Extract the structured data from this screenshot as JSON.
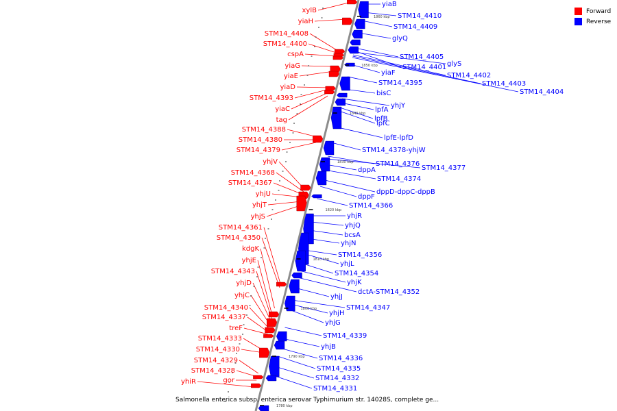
{
  "legend": [
    {
      "label": "Forward",
      "color": "#ff0000"
    },
    {
      "label": "Reverse",
      "color": "#0000ff"
    }
  ],
  "caption": "Salmonella enterica subsp. enterica serovar Typhimurium str. 14028S, complete ge...",
  "backbone_color": "#8c8c8c",
  "forward_genes": [
    "xylB",
    "yiaH",
    "STM14_4408",
    "STM14_4400",
    "cspA",
    "yiaG",
    "yiaE",
    "yiaD",
    "STM14_4393",
    "yiaC",
    "tag",
    "STM14_4388",
    "STM14_4380",
    "STM14_4379",
    "yhjV",
    "STM14_4368",
    "STM14_4367",
    "yhjU",
    "yhjT",
    "yhjS",
    "STM14_4361",
    "STM14_4350",
    "kdgK",
    "yhjE",
    "STM14_4343",
    "yhjD",
    "yhjC",
    "STM14_4340",
    "STM14_4337",
    "treF",
    "STM14_4333",
    "STM14_4330",
    "STM14_4329",
    "STM14_4328",
    "gor",
    "yhiR"
  ],
  "reverse_genes": [
    "yiaB",
    "STM14_4410",
    "STM14_4409",
    "glyQ",
    "STM14_4405",
    "glyS",
    "STM14_4401",
    "yiaF",
    "STM14_4402",
    "STM14_4403",
    "STM14_4404",
    "STM14_4395",
    "bisC",
    "yhjY",
    "lpfA",
    "lpfB",
    "lpfC",
    "lpfE-lpfD",
    "STM14_4378-yhjW",
    "STM14_4376",
    "STM14_4377",
    "dppA",
    "STM14_4374",
    "dppD-dppC-dppB",
    "dppF",
    "STM14_4366",
    "yhjR",
    "yhjQ",
    "bcsA",
    "yhjN",
    "STM14_4356",
    "yhjL",
    "STM14_4354",
    "yhjK",
    "dctA-STM14_4352",
    "yhjJ",
    "STM14_4347",
    "yhjH",
    "yhjG",
    "STM14_4339",
    "yhjB",
    "STM14_4336",
    "STM14_4335",
    "STM14_4332",
    "STM14_4331"
  ],
  "ticks": [
    "1860 kbp",
    "1850 kbp",
    "1840 kbp",
    "1830 kbp",
    "1820 kbp",
    "1810 kbp",
    "1800 kbp",
    "1790 kbp",
    "1780 kbp"
  ]
}
